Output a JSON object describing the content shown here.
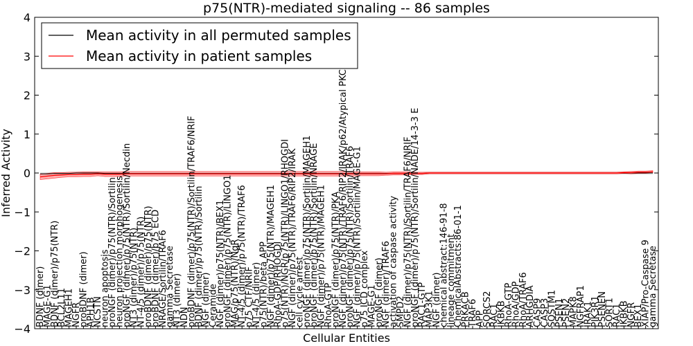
{
  "chart_data": {
    "type": "line",
    "title": "p75(NTR)-mediated signaling -- 86 samples",
    "xlabel": "Cellular Entities",
    "ylabel": "Inferred Activity",
    "ylim": [
      -4,
      4
    ],
    "yticks": [
      "-4",
      "-3",
      "-2",
      "-1",
      "0",
      "1",
      "2",
      "3",
      "4"
    ],
    "grid": false,
    "legend_position": "top-left",
    "categories": [
      "BDNF (dimer)",
      "MAGE-G1",
      "BDNF (dimer)/p75(NTR)",
      "BCL2L11",
      "MAGEH1",
      "NGFR",
      "proBDNF (dimer)",
      "APH1B",
      "NCSTN",
      "neuron apoptosis",
      "proNGF (dimer)/p75(NTR)/Sortilin",
      "neuron projection morphogenesis",
      "proNGF (dimer)/p75(NTR)/Sortilin/Necdin",
      "NT3 (dimer)/p75(NTR)",
      "NT-4/5 (dimer)/p75(NTR)",
      "proBDNF (dimer)/p75(NTR)",
      "proBDNF (dimer)/p75 ECD",
      "NRAGE/Sortilin/TRAF6",
      "gamma Secretase",
      "NT3 (dimer)",
      "NDN",
      "proBDNF (dimer)/p75(NTR)/Sortilin/TRAF6/NRIF",
      "BDNF (dimer)/p75(NTR)/Sortilin",
      "NGF (dimer)",
      "Ceramide",
      "NGF (dimer)/p75(NTR)/BEX1",
      "proNGF (dimer)/p75(NTR)/LINGO1",
      "MAG/p75(NTR)/NgR",
      "NT-4/5 (dimer)/p75(NTR)/TRAF6",
      "p75 CTF/NRIF",
      "NT-4/5 (dimer)",
      "p75(NTR)/beta APP",
      "NGF (dimer)/p75(NTR)/MAGEH1",
      "RhoA-GDP/RHOGDI",
      "p75(NTR)/NGR/p75(NTR)/LINGO1/RHOGDI",
      "NGF (dimer)/p75(NTR)/TRAF6/RIP2/IRAK",
      "cell cycle arrest",
      "proNGF (dimer)/p75(NTR)/Sortilin/MAGEH1",
      "proNGF (dimer)/p75(NTR)/Sortilin/NRAGE",
      "NGF (dimer)/p75(NTR)/MAGEH1",
      "RhoA-GTP",
      "proNGF (dimer)/p75(NTR)/PKA",
      "NGF (dimer)/p75(NTR)/TRAF6/RIP2/IRAK/p62/Atypical PKCs",
      "proNGF (dimer)/p75(NTR)/Sortilin/TRAF6",
      "NGF (dimer)/p75(NTR)/Sortilin/MAGE-G1",
      "p75 ICD complex",
      "MAGE-G1",
      "proNGF (dimer)",
      "NGF (dimer)/TRAF6",
      "activation of caspase activity",
      "SMPD2",
      "NGF (dimer)/p75(NTR)/Sortilin/TRAF6/NRIF",
      "proNGF (dimer)/p75(NTR)/Sortilin/NADE/14-3-3 E",
      "RAC1-GTP",
      "MAP3K1",
      "NGF (dimer)",
      "chemical abstract:146-91-8",
      "lineage commitment",
      "ChemicalAbstracts:86-01-1",
      "PRKACB",
      "TRAF6",
      "APP",
      "SORCS2",
      "RAC1",
      "IKBKB",
      "RhoA-GTP",
      "RhoA/GDP",
      "RhoA/TRAF6",
      "ARHGDIA",
      "CASP9",
      "CASP3",
      "SQSTM1",
      "PSEN1",
      "PSEN2",
      "MAPK8",
      "NGFRAP1",
      "IRAK1",
      "PIK3R1",
      "PSENEN",
      "SORT1",
      "RAC1",
      "IKBKB",
      "NGFR",
      "BEX1",
      "XIAP/Pro-Caspase 9",
      "gamma Secretase"
    ],
    "series": [
      {
        "name": "Mean activity in all permuted samples",
        "color": "#000000",
        "values": [
          -0.02,
          -0.02,
          -0.01,
          -0.01,
          -0.01,
          0,
          0,
          0,
          0,
          -0.01,
          -0.01,
          -0.01,
          -0.01,
          -0.01,
          -0.01,
          -0.01,
          -0.01,
          -0.01,
          -0.01,
          -0.01,
          -0.01,
          -0.01,
          -0.01,
          -0.01,
          -0.01,
          -0.01,
          -0.01,
          -0.01,
          -0.01,
          -0.01,
          -0.01,
          -0.01,
          -0.01,
          -0.01,
          -0.01,
          -0.01,
          -0.01,
          -0.01,
          -0.01,
          -0.01,
          -0.01,
          -0.01,
          -0.01,
          -0.01,
          -0.01,
          -0.01,
          -0.01,
          -0.01,
          -0.01,
          -0.01,
          -0.01,
          -0.01,
          -0.01,
          -0.01,
          0,
          0,
          0,
          0,
          0,
          0,
          0,
          0,
          0,
          0,
          0,
          0,
          0,
          0,
          0,
          0,
          0,
          0,
          0,
          0,
          0,
          0,
          0,
          0,
          0,
          0,
          0,
          0,
          0,
          0,
          0,
          0
        ]
      },
      {
        "name": "Mean activity in patient samples",
        "color": "#ff0000",
        "values": [
          -0.1,
          -0.08,
          -0.06,
          -0.05,
          -0.04,
          -0.04,
          -0.03,
          -0.03,
          -0.02,
          -0.03,
          -0.03,
          -0.03,
          -0.02,
          -0.02,
          -0.02,
          -0.02,
          -0.02,
          -0.02,
          -0.02,
          -0.02,
          -0.02,
          -0.02,
          -0.02,
          -0.02,
          -0.02,
          -0.02,
          -0.02,
          -0.02,
          -0.02,
          -0.02,
          -0.02,
          -0.02,
          -0.02,
          -0.02,
          -0.02,
          -0.02,
          -0.02,
          -0.02,
          -0.02,
          -0.02,
          -0.02,
          -0.02,
          -0.02,
          -0.02,
          -0.02,
          -0.02,
          -0.02,
          -0.02,
          -0.02,
          -0.01,
          -0.01,
          -0.01,
          -0.01,
          -0.01,
          0,
          0,
          0,
          0,
          0,
          0,
          0,
          0,
          0,
          0,
          0,
          0,
          0,
          0,
          0,
          0,
          0,
          0,
          0,
          0,
          0,
          0,
          0,
          0,
          0,
          0,
          0,
          0.01,
          0.01,
          0.02,
          0.02,
          0.03
        ],
        "band": [
          0.07,
          0.07,
          0.07,
          0.06,
          0.06,
          0.06,
          0.06,
          0.06,
          0.05,
          0.06,
          0.06,
          0.06,
          0.06,
          0.06,
          0.06,
          0.06,
          0.06,
          0.06,
          0.06,
          0.06,
          0.06,
          0.06,
          0.06,
          0.06,
          0.06,
          0.06,
          0.06,
          0.06,
          0.06,
          0.06,
          0.06,
          0.06,
          0.06,
          0.06,
          0.06,
          0.06,
          0.06,
          0.06,
          0.06,
          0.06,
          0.06,
          0.06,
          0.06,
          0.06,
          0.05,
          0.05,
          0.05,
          0.05,
          0.04,
          0.04,
          0.04,
          0.04,
          0.03,
          0.03,
          0.02,
          0.02,
          0.02,
          0.02,
          0.02,
          0.02,
          0.02,
          0.02,
          0.02,
          0.02,
          0.02,
          0.02,
          0.02,
          0.02,
          0.02,
          0.02,
          0.02,
          0.02,
          0.02,
          0.02,
          0.02,
          0.02,
          0.02,
          0.02,
          0.02,
          0.02,
          0.02,
          0.02,
          0.03,
          0.03,
          0.03,
          0.03
        ]
      }
    ],
    "legend": [
      "Mean activity in all permuted samples",
      "Mean activity in patient samples"
    ]
  }
}
